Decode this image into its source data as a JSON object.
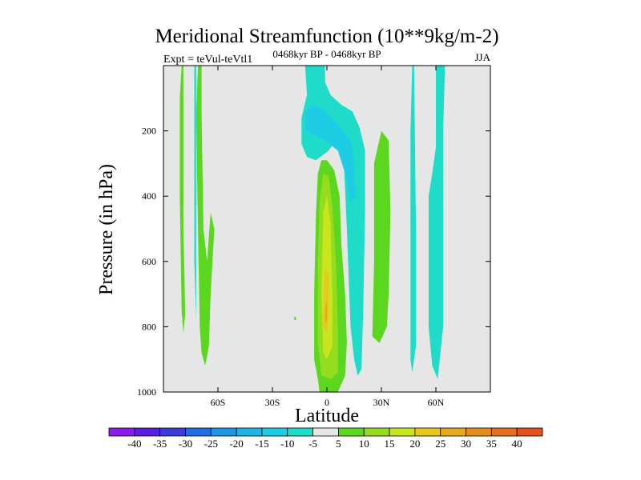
{
  "chart_data": {
    "type": "contour",
    "title": "Meridional Streamfunction (10**9kg/m-2)",
    "left_label": "Expt = teVul-teVtl1",
    "center_label": "0468kyr BP - 0468kyr BP",
    "right_label": "JJA",
    "xlabel": "Latitude",
    "ylabel": "Pressure (in hPa)",
    "xlim": [
      -90,
      90
    ],
    "ylim": [
      0,
      1000
    ],
    "x_ticks": [
      {
        "value": -60,
        "label": "60S"
      },
      {
        "value": -30,
        "label": "30S"
      },
      {
        "value": 0,
        "label": "0"
      },
      {
        "value": 30,
        "label": "30N"
      },
      {
        "value": 60,
        "label": "60N"
      }
    ],
    "y_ticks": [
      {
        "value": 200,
        "label": "200"
      },
      {
        "value": 400,
        "label": "400"
      },
      {
        "value": 600,
        "label": "600"
      },
      {
        "value": 800,
        "label": "800"
      },
      {
        "value": 1000,
        "label": "1000"
      }
    ],
    "background_color": "#e6e6e6",
    "colorbar": {
      "boundaries": [
        "-40",
        "-35",
        "-30",
        "-25",
        "-20",
        "-15",
        "-10",
        "-5",
        "5",
        "10",
        "15",
        "20",
        "25",
        "30",
        "35",
        "40"
      ],
      "colors": [
        "#8a1ee6",
        "#5a1ee0",
        "#3c3cdc",
        "#1e6ee6",
        "#1e96e6",
        "#1eb4e6",
        "#1ecce6",
        "#1edcc8",
        "#e6e6e6",
        "#5ad71e",
        "#96dc1e",
        "#c8e61e",
        "#e6c81e",
        "#e6aa1e",
        "#e68c1e",
        "#e66e1e",
        "#e6501e"
      ]
    },
    "features": [
      {
        "name": "positive-cell-equator",
        "bin": 9,
        "points": [
          [
            -4,
            1000
          ],
          [
            -5,
            960
          ],
          [
            -7,
            900
          ],
          [
            -7,
            700
          ],
          [
            -6,
            450
          ],
          [
            -5,
            330
          ],
          [
            -3,
            290
          ],
          [
            0,
            290
          ],
          [
            4,
            320
          ],
          [
            7,
            400
          ],
          [
            8,
            550
          ],
          [
            10,
            700
          ],
          [
            11,
            850
          ],
          [
            10,
            950
          ],
          [
            6,
            1000
          ]
        ]
      },
      {
        "name": "positive-core-10",
        "bin": 10,
        "points": [
          [
            -3,
            950
          ],
          [
            -5,
            850
          ],
          [
            -5,
            600
          ],
          [
            -4,
            420
          ],
          [
            -2,
            330
          ],
          [
            1,
            340
          ],
          [
            3,
            430
          ],
          [
            5,
            600
          ],
          [
            6,
            800
          ],
          [
            6,
            940
          ],
          [
            2,
            960
          ]
        ]
      },
      {
        "name": "positive-core-15",
        "bin": 11,
        "points": [
          [
            -2,
            880
          ],
          [
            -3,
            700
          ],
          [
            -2,
            450
          ],
          [
            0,
            400
          ],
          [
            2,
            480
          ],
          [
            3,
            700
          ],
          [
            3,
            860
          ],
          [
            0,
            900
          ]
        ]
      },
      {
        "name": "positive-core-20",
        "bin": 12,
        "points": [
          [
            -2,
            800
          ],
          [
            -2,
            700
          ],
          [
            -1,
            620
          ],
          [
            1,
            640
          ],
          [
            1,
            760
          ],
          [
            0,
            820
          ]
        ]
      },
      {
        "name": "positive-core-25",
        "bin": 13,
        "points": [
          [
            -1,
            790
          ],
          [
            -1,
            740
          ],
          [
            0,
            720
          ],
          [
            0,
            780
          ]
        ]
      },
      {
        "name": "negative-upper-equatorial",
        "bin": 7,
        "points": [
          [
            -12,
            0
          ],
          [
            -11,
            90
          ],
          [
            -14,
            160
          ],
          [
            -14,
            240
          ],
          [
            -11,
            280
          ],
          [
            -6,
            290
          ],
          [
            1,
            260
          ],
          [
            6,
            220
          ],
          [
            9,
            250
          ],
          [
            11,
            500
          ],
          [
            13,
            800
          ],
          [
            15,
            900
          ],
          [
            17,
            950
          ],
          [
            19,
            930
          ],
          [
            20,
            750
          ],
          [
            21,
            450
          ],
          [
            21,
            260
          ],
          [
            18,
            190
          ],
          [
            14,
            140
          ],
          [
            8,
            120
          ],
          [
            2,
            90
          ],
          [
            -1,
            50
          ],
          [
            -1,
            0
          ]
        ]
      },
      {
        "name": "negative-upper-core",
        "bin": 6,
        "points": [
          [
            -12,
            200
          ],
          [
            -12,
            140
          ],
          [
            -8,
            120
          ],
          [
            -3,
            130
          ],
          [
            4,
            170
          ],
          [
            9,
            200
          ],
          [
            14,
            240
          ],
          [
            16,
            400
          ],
          [
            13,
            420
          ],
          [
            10,
            330
          ],
          [
            6,
            260
          ],
          [
            -1,
            230
          ]
        ]
      },
      {
        "name": "positive-strip-sh-a",
        "bin": 9,
        "points": [
          [
            -80,
            0
          ],
          [
            -81,
            100
          ],
          [
            -81,
            400
          ],
          [
            -80,
            750
          ],
          [
            -79,
            820
          ],
          [
            -78,
            760
          ],
          [
            -79,
            500
          ],
          [
            -79,
            150
          ],
          [
            -79,
            0
          ]
        ]
      },
      {
        "name": "positive-strip-sh-b",
        "bin": 9,
        "points": [
          [
            -71,
            0
          ],
          [
            -72,
            150
          ],
          [
            -71,
            500
          ],
          [
            -70,
            800
          ],
          [
            -69,
            880
          ],
          [
            -67,
            920
          ],
          [
            -65,
            860
          ],
          [
            -64,
            700
          ],
          [
            -62,
            500
          ],
          [
            -64,
            450
          ],
          [
            -66,
            600
          ],
          [
            -68,
            500
          ],
          [
            -69,
            150
          ],
          [
            -69,
            0
          ]
        ]
      },
      {
        "name": "negative-line-sh",
        "bin": 7,
        "points": [
          [
            -73,
            0
          ],
          [
            -73,
            600
          ],
          [
            -72,
            780
          ],
          [
            -72,
            600
          ],
          [
            -72,
            0
          ]
        ]
      },
      {
        "name": "positive-strip-30n",
        "bin": 9,
        "points": [
          [
            25,
            830
          ],
          [
            26,
            600
          ],
          [
            26,
            300
          ],
          [
            30,
            200
          ],
          [
            34,
            230
          ],
          [
            35,
            450
          ],
          [
            34,
            700
          ],
          [
            33,
            800
          ],
          [
            29,
            850
          ]
        ]
      },
      {
        "name": "negative-strip-45n",
        "bin": 7,
        "points": [
          [
            47,
            0
          ],
          [
            46,
            200
          ],
          [
            46,
            600
          ],
          [
            46,
            900
          ],
          [
            47,
            940
          ],
          [
            49,
            860
          ],
          [
            49,
            500
          ],
          [
            48,
            0
          ]
        ]
      },
      {
        "name": "negative-strip-60n",
        "bin": 7,
        "points": [
          [
            60,
            0
          ],
          [
            60,
            250
          ],
          [
            58,
            330
          ],
          [
            56,
            400
          ],
          [
            56,
            600
          ],
          [
            56,
            800
          ],
          [
            58,
            920
          ],
          [
            61,
            960
          ],
          [
            64,
            800
          ],
          [
            64,
            400
          ],
          [
            64,
            200
          ],
          [
            65,
            0
          ]
        ]
      },
      {
        "name": "speck-1",
        "bin": 9,
        "points": [
          [
            -18,
            770
          ],
          [
            -17,
            770
          ],
          [
            -17,
            780
          ],
          [
            -18,
            780
          ]
        ]
      }
    ]
  }
}
